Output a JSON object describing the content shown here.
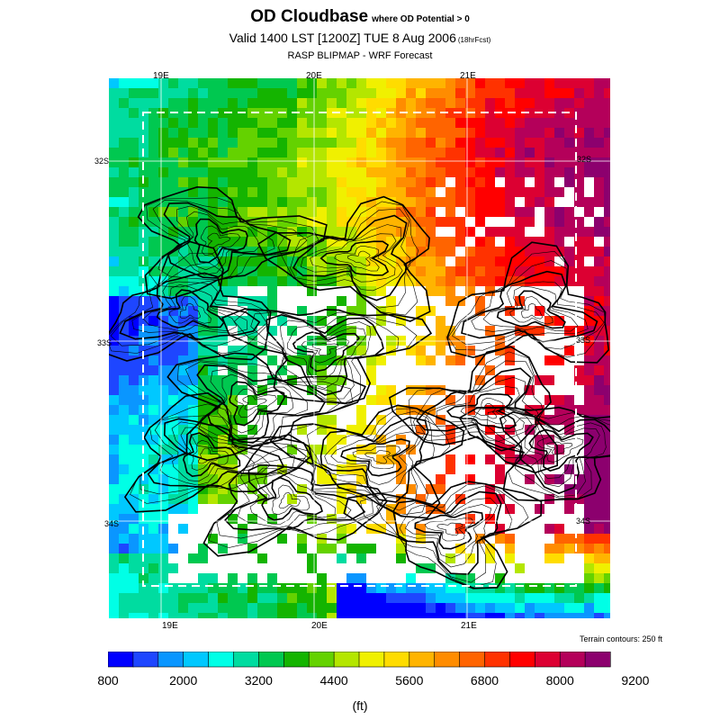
{
  "title": {
    "main": "OD Cloudbase",
    "qualifier": "where OD Potential > 0",
    "valid": "Valid 1400 LST [1200Z] TUE 8 Aug 2006",
    "forecast_hour": "(18hrFcst)",
    "source": "RASP BLIPMAP - WRF Forecast"
  },
  "map": {
    "lon_ticks_top": [
      "19E",
      "20E",
      "21E"
    ],
    "lon_ticks_bottom": [
      "19E",
      "20E",
      "21E"
    ],
    "lat_ticks_left": [
      "32S",
      "33S",
      "34S"
    ],
    "lat_ticks_right": [
      "32S",
      "33S",
      "34S"
    ],
    "terrain_note": "Terrain contours: 250 ft"
  },
  "colorbar": {
    "units": "(ft)",
    "labels": [
      "800",
      "2000",
      "3200",
      "4400",
      "5600",
      "6800",
      "8000",
      "9200"
    ],
    "colors": [
      "#0000ff",
      "#1e46ff",
      "#0a96ff",
      "#00c8ff",
      "#00ffe6",
      "#00dca0",
      "#00c850",
      "#14b400",
      "#64d200",
      "#b4e600",
      "#f0f000",
      "#ffdc00",
      "#ffb400",
      "#ff8c00",
      "#ff6400",
      "#ff3200",
      "#ff0000",
      "#dc0032",
      "#b4005a",
      "#8c006e"
    ],
    "min": 800,
    "max": 9200
  }
}
